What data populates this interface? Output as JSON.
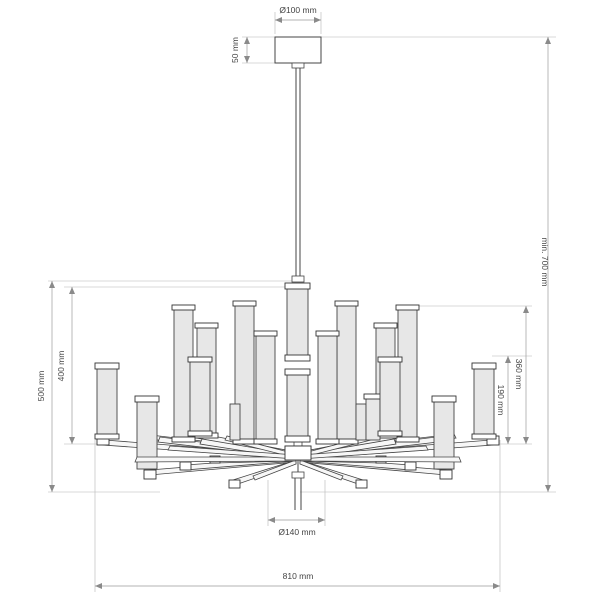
{
  "dimensions": {
    "canopy_diameter": "Ø100 mm",
    "canopy_height": "50 mm",
    "total_height": "min. 700 mm",
    "fixture_height": "500 mm",
    "upper_shade_height": "400 mm",
    "mid_height": "360 mm",
    "small_shade_height": "190 mm",
    "hub_diameter": "Ø140 mm",
    "total_width": "810 mm"
  },
  "colors": {
    "line": "#444444",
    "dimension": "#9a9a9a",
    "shade_fill": "#e7e7e7"
  }
}
